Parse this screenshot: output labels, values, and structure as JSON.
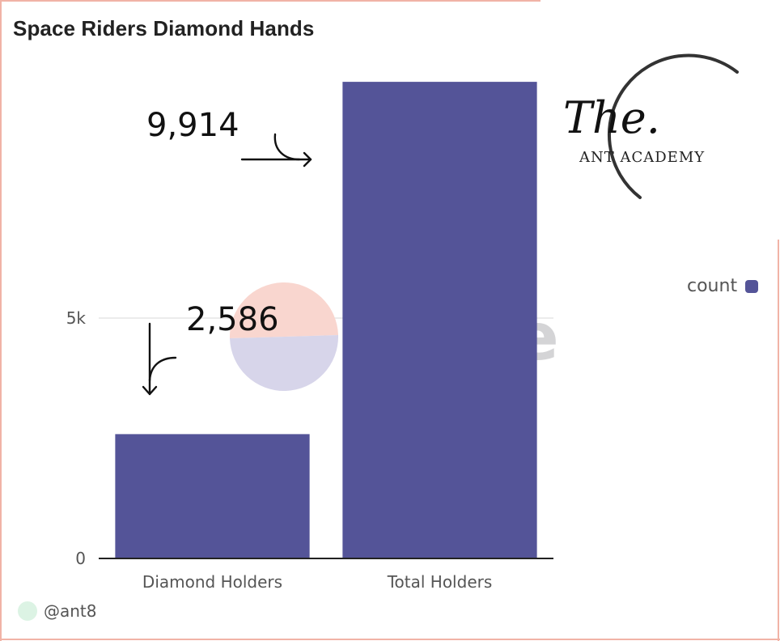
{
  "chart_data": {
    "type": "bar",
    "title": "Space Riders Diamond Hands",
    "categories": [
      "Diamond Holders",
      "Total Holders"
    ],
    "series": [
      {
        "name": "count",
        "values": [
          2586,
          9914
        ],
        "color": "#545498"
      }
    ],
    "y_ticks": [
      {
        "value": 0,
        "label": "0"
      },
      {
        "value": 5000,
        "label": "5k"
      }
    ],
    "ylim": [
      0,
      10000
    ],
    "xlabel": "",
    "ylabel": "",
    "legend_placement": "right",
    "grid": true,
    "annotations": [
      "2,586",
      "9,914"
    ]
  },
  "watermark": {
    "text": "Dune",
    "logo_colors": [
      "#f9d6cf",
      "#d7d5ea"
    ]
  },
  "logo": {
    "script": "The.",
    "text": "ANT ACADEMY"
  },
  "footer": {
    "username": "@ant8"
  },
  "colors": {
    "bar": "#545498",
    "frame": "#f1b3a6",
    "grid": "#e6e6e6",
    "axis": "#222222"
  }
}
